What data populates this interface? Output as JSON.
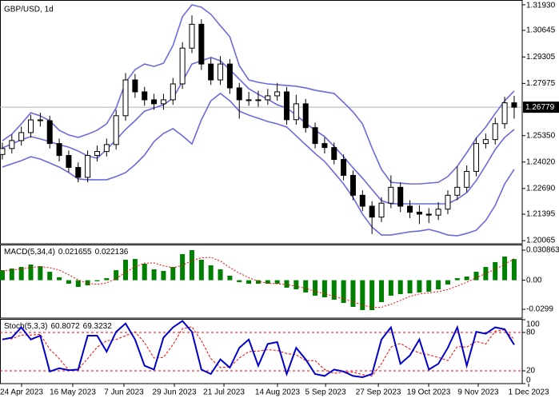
{
  "chart_data": [
    {
      "type": "candlestick",
      "title": "GBP/USD, 1d",
      "open": [
        1.244,
        1.247,
        1.251,
        1.255,
        1.2614,
        1.261,
        1.2495,
        1.2435,
        1.2375,
        1.2325,
        1.2435,
        1.2455,
        1.249,
        1.2635,
        1.2815,
        1.2755,
        1.2715,
        1.2695,
        1.2715,
        1.2795,
        1.2975,
        1.3095,
        1.2895,
        1.2815,
        1.2895,
        1.2775,
        1.2715,
        1.2715,
        1.2715,
        1.2735,
        1.2755,
        1.2615,
        1.2695,
        1.2575,
        1.2495,
        1.2475,
        1.2415,
        1.2335,
        1.2235,
        1.218,
        1.2125,
        1.2195,
        1.2275,
        1.218,
        1.215,
        1.214,
        1.2135,
        1.2165,
        1.2235,
        1.2275,
        1.2355,
        1.2495,
        1.2515,
        1.2595,
        1.27
      ],
      "high": [
        1.25,
        1.254,
        1.258,
        1.264,
        1.265,
        1.2635,
        1.252,
        1.246,
        1.24,
        1.246,
        1.2485,
        1.252,
        1.2665,
        1.285,
        1.2845,
        1.278,
        1.2745,
        1.2745,
        1.2825,
        1.3005,
        1.314,
        1.312,
        1.2925,
        1.2935,
        1.292,
        1.28,
        1.2755,
        1.276,
        1.277,
        1.28,
        1.278,
        1.274,
        1.272,
        1.26,
        1.2525,
        1.25,
        1.244,
        1.236,
        1.226,
        1.2205,
        1.2225,
        1.2335,
        1.23,
        1.221,
        1.2185,
        1.217,
        1.22,
        1.226,
        1.238,
        1.2385,
        1.2525,
        1.2545,
        1.2625,
        1.273,
        1.2735
      ],
      "low": [
        1.2415,
        1.2445,
        1.2485,
        1.2525,
        1.258,
        1.247,
        1.2405,
        1.235,
        1.23,
        1.23,
        1.2405,
        1.243,
        1.2465,
        1.261,
        1.2725,
        1.2685,
        1.2665,
        1.2665,
        1.269,
        1.277,
        1.295,
        1.2865,
        1.279,
        1.279,
        1.2745,
        1.262,
        1.2685,
        1.268,
        1.269,
        1.271,
        1.259,
        1.259,
        1.255,
        1.247,
        1.2445,
        1.239,
        1.231,
        1.221,
        1.2155,
        1.204,
        1.21,
        1.217,
        1.215,
        1.212,
        1.209,
        1.2095,
        1.211,
        1.214,
        1.221,
        1.225,
        1.233,
        1.247,
        1.249,
        1.257,
        1.262
      ],
      "close": [
        1.247,
        1.251,
        1.255,
        1.2614,
        1.261,
        1.2495,
        1.2435,
        1.2375,
        1.2325,
        1.2435,
        1.2455,
        1.249,
        1.2635,
        1.2815,
        1.2755,
        1.2715,
        1.2695,
        1.2715,
        1.2795,
        1.2975,
        1.3095,
        1.2895,
        1.2815,
        1.2895,
        1.2775,
        1.2715,
        1.2715,
        1.2715,
        1.2735,
        1.2755,
        1.2615,
        1.2695,
        1.2575,
        1.2495,
        1.2475,
        1.2415,
        1.2335,
        1.2235,
        1.218,
        1.2125,
        1.2195,
        1.2275,
        1.218,
        1.215,
        1.214,
        1.2135,
        1.2165,
        1.2235,
        1.2275,
        1.2355,
        1.2495,
        1.2515,
        1.2595,
        1.27,
        1.26779
      ],
      "overlays": [
        {
          "color": "#6a6ade",
          "values": [
            1.2509,
            1.2542,
            1.2594,
            1.265,
            1.2634,
            1.261,
            1.2562,
            1.2538,
            1.2526,
            1.2542,
            1.2562,
            1.2594,
            1.2674,
            1.2803,
            1.2867,
            1.2895,
            1.2883,
            1.2899,
            1.2988,
            1.3133,
            1.3193,
            1.3181,
            1.3145,
            1.3088,
            1.3032,
            1.2887,
            1.2815,
            1.2803,
            1.2795,
            1.2791,
            1.2787,
            1.2783,
            1.2775,
            1.2763,
            1.2755,
            1.2747,
            1.2702,
            1.2654,
            1.2594,
            1.2473,
            1.2365,
            1.23,
            1.2296,
            1.2292,
            1.2292,
            1.2296,
            1.23,
            1.2329,
            1.2381,
            1.2449,
            1.2522,
            1.2578,
            1.2646,
            1.271,
            1.2759
          ]
        },
        {
          "color": "#6a6ade",
          "values": [
            1.2473,
            1.2493,
            1.2514,
            1.253,
            1.2518,
            1.2505,
            1.2489,
            1.2477,
            1.2457,
            1.2433,
            1.2421,
            1.2465,
            1.2514,
            1.2566,
            1.261,
            1.2658,
            1.2674,
            1.269,
            1.2723,
            1.2807,
            1.2895,
            1.2911,
            1.2928,
            1.2911,
            1.2867,
            1.2819,
            1.2771,
            1.2743,
            1.2718,
            1.269,
            1.2674,
            1.2638,
            1.2598,
            1.2562,
            1.253,
            1.2481,
            1.2429,
            1.2373,
            1.2321,
            1.2264,
            1.2208,
            1.2192,
            1.2192,
            1.2192,
            1.2192,
            1.2192,
            1.2192,
            1.2192,
            1.2216,
            1.2248,
            1.2309,
            1.2385,
            1.2465,
            1.2526,
            1.2566
          ]
        },
        {
          "color": "#6a6ade",
          "values": [
            1.2377,
            1.2393,
            1.2409,
            1.2429,
            1.2417,
            1.2397,
            1.2377,
            1.2349,
            1.2317,
            1.2313,
            1.2313,
            1.2313,
            1.2329,
            1.2349,
            1.2389,
            1.2437,
            1.2505,
            1.2546,
            1.257,
            1.2534,
            1.2493,
            1.2614,
            1.271,
            1.2747,
            1.271,
            1.2658,
            1.2638,
            1.2622,
            1.2606,
            1.2594,
            1.2578,
            1.2534,
            1.2489,
            1.2445,
            1.2405,
            1.2349,
            1.2292,
            1.2224,
            1.214,
            1.2075,
            1.2035,
            1.2035,
            1.2043,
            1.2051,
            1.2055,
            1.2063,
            1.2051,
            1.2035,
            1.2031,
            1.2043,
            1.2059,
            1.2108,
            1.2184,
            1.2292,
            1.2365
          ]
        }
      ],
      "last_price_color": "#000000",
      "xlim": [
        -0.25,
        54.85
      ],
      "xticks": [
        {
          "value": 2.03,
          "label": "24 Apr 2023"
        },
        {
          "value": 7.43,
          "label": "16 May 2023"
        },
        {
          "value": 12.83,
          "label": "7 Jun 2023"
        },
        {
          "value": 18.15,
          "label": "29 Jun 2023"
        },
        {
          "value": 23.38,
          "label": "21 Jul 2023"
        },
        {
          "value": 29.03,
          "label": "14 Aug 2023"
        },
        {
          "value": 34.1,
          "label": "5 Sep 2023"
        },
        {
          "value": 39.67,
          "label": "27 Sep 2023"
        },
        {
          "value": 44.98,
          "label": "19 Oct 2023"
        },
        {
          "value": 50.21,
          "label": "9 Nov 2023"
        },
        {
          "value": 55.53,
          "label": "1 Dec 2023"
        }
      ],
      "ylim": [
        1.1991,
        1.3213
      ],
      "yticks": [
        {
          "value": 1.3193,
          "label": "1.31930"
        },
        1.30645,
        1.29305,
        1.27975,
        {
          "value": 1.2535,
          "label": "1.25350"
        },
        {
          "value": 1.2402,
          "label": "1.24020"
        },
        {
          "value": 1.2269,
          "label": "1.22690"
        },
        1.21395,
        1.20065
      ]
    },
    {
      "type": "macd",
      "title": "MACD(5,34,4)",
      "color": "#008000",
      "signal_color": "#ff0000",
      "values": [
        0.0103,
        0.012,
        0.0136,
        0.0161,
        0.0144,
        0.0087,
        0.003,
        -0.0036,
        -0.0069,
        -0.0053,
        -0.0011,
        0.0021,
        0.0103,
        0.021,
        0.0218,
        0.0169,
        0.0112,
        0.0095,
        0.0136,
        0.0268,
        0.0309,
        0.021,
        0.0153,
        0.0112,
        0.0046,
        -0.002,
        -0.0036,
        -0.0036,
        -0.0036,
        -0.0036,
        -0.0077,
        -0.0094,
        -0.0126,
        -0.0159,
        -0.0176,
        -0.02,
        -0.0233,
        -0.0274,
        -0.0307,
        -0.0307,
        -0.0225,
        -0.0159,
        -0.0143,
        -0.0135,
        -0.0126,
        -0.0118,
        -0.0094,
        -0.0044,
        0.0021,
        0.0038,
        0.0087,
        0.0136,
        0.0186,
        0.0243,
        0.021655
      ],
      "signal": [
        0.0095,
        0.0105,
        0.0115,
        0.013,
        0.014,
        0.0128,
        0.0105,
        0.0056,
        0.0003,
        -0.0032,
        -0.0042,
        -0.0028,
        0.0015,
        0.0081,
        0.0138,
        0.0175,
        0.0177,
        0.0148,
        0.0128,
        0.0153,
        0.0202,
        0.023,
        0.0235,
        0.0196,
        0.013,
        0.0073,
        0.0026,
        -0.0012,
        -0.0032,
        -0.0036,
        -0.0046,
        -0.0061,
        -0.0083,
        -0.0114,
        -0.0139,
        -0.0165,
        -0.0192,
        -0.0221,
        -0.0254,
        -0.028,
        -0.0278,
        -0.0247,
        -0.0208,
        -0.0165,
        -0.0141,
        -0.013,
        -0.0118,
        -0.0095,
        -0.006,
        -0.002,
        0.0025,
        0.007,
        0.0112,
        0.0163,
        0.022136
      ],
      "ylim": [
        -0.0389,
        0.0358
      ],
      "yticks": [
        0.030863,
        {
          "value": 0,
          "label": "0.00"
        },
        -0.0299
      ]
    },
    {
      "type": "stochastic",
      "title": "Stoch(5,3,3)",
      "color": "#0000cc",
      "signal_color": "#ff0000",
      "values": [
        69,
        72,
        88,
        69,
        75,
        19,
        24,
        21,
        22,
        75,
        75,
        50,
        81,
        94,
        69,
        28,
        22,
        72,
        88,
        98,
        81,
        22,
        15,
        38,
        25,
        56,
        69,
        28,
        62,
        65,
        15,
        56,
        38,
        15,
        12,
        22,
        19,
        12,
        10,
        15,
        69,
        88,
        31,
        44,
        69,
        22,
        31,
        56,
        88,
        28,
        81,
        78,
        88,
        85,
        60.8072
      ],
      "signal": [
        70,
        70,
        76,
        76,
        77,
        54,
        39,
        21,
        22,
        39,
        57,
        67,
        69,
        75,
        81,
        64,
        40,
        41,
        61,
        86,
        89,
        67,
        39,
        25,
        26,
        40,
        50,
        51,
        53,
        52,
        47,
        45,
        36,
        36,
        22,
        16,
        18,
        18,
        14,
        12,
        31,
        57,
        63,
        54,
        48,
        45,
        41,
        36,
        58,
        57,
        66,
        62,
        82,
        84,
        69.3232
      ],
      "levels": [
        20,
        80
      ],
      "ylim": [
        0,
        100
      ],
      "yticks": [
        100,
        80,
        20,
        0
      ]
    }
  ]
}
